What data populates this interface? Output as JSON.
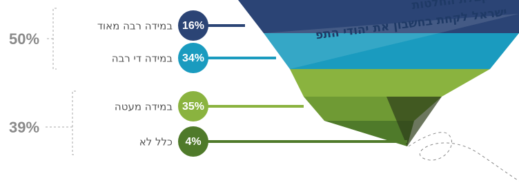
{
  "chart_data": {
    "type": "infographic",
    "title_lines": [
      "בעת קבלת החלטות",
      "ישראל לקחת בחשבון את יהודי התפ"
    ],
    "categories": [
      "במידה רבה מאוד",
      "במידה די רבה",
      "במידה מעטה",
      "כלל לא"
    ],
    "values": [
      16,
      34,
      35,
      4
    ],
    "value_labels": [
      "16%",
      "34%",
      "35%",
      "4%"
    ],
    "colors": [
      "#2b4475",
      "#1a9bbf",
      "#8ab33f",
      "#4f7a2a"
    ],
    "groups": [
      {
        "value": 50,
        "label": "50%"
      },
      {
        "value": 39,
        "label": "39%"
      }
    ]
  }
}
